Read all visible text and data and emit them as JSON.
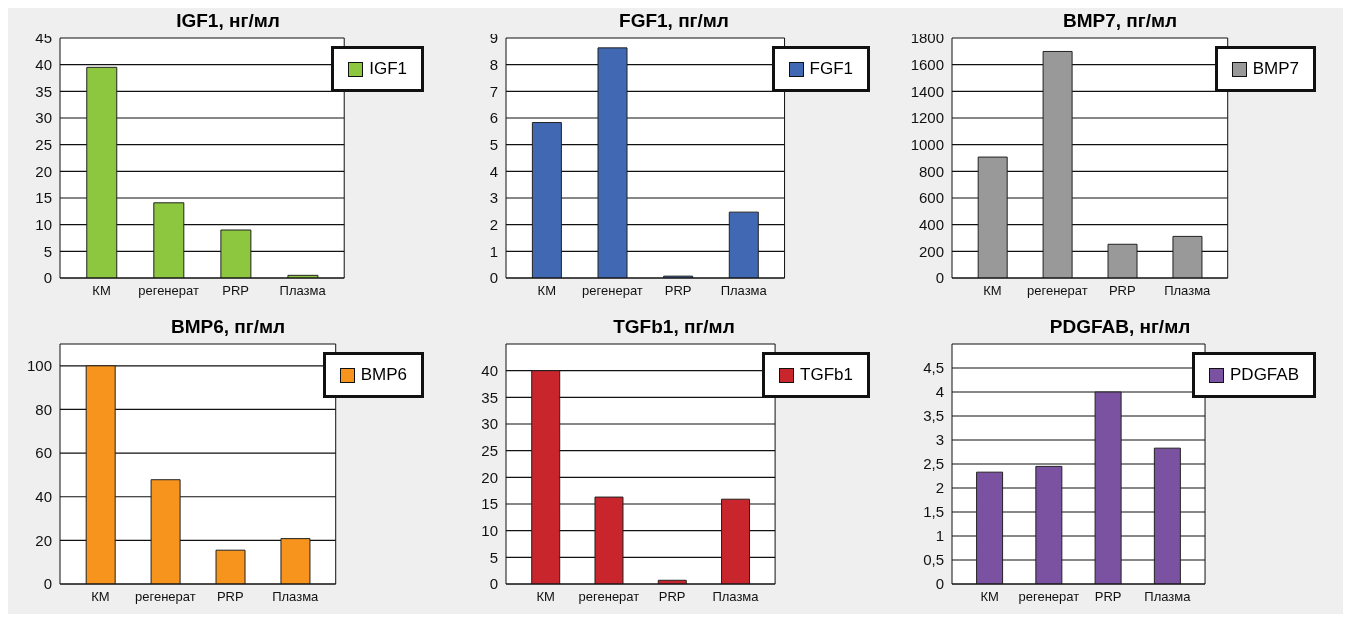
{
  "chart_data": [
    {
      "type": "bar",
      "title": "IGF1, нг/мл",
      "categories": [
        "КМ",
        "регенерат",
        "PRP",
        "Плазма"
      ],
      "series": [
        {
          "name": "IGF1",
          "color": "#8dc63f",
          "values": [
            39.5,
            14.1,
            9.0,
            0.5
          ]
        }
      ],
      "ylim": [
        0,
        45
      ],
      "yticks": [
        0,
        5,
        10,
        15,
        20,
        25,
        30,
        35,
        40,
        45
      ],
      "grid": "y",
      "legend": "top right"
    },
    {
      "type": "bar",
      "title": "FGF1, пг/мл",
      "categories": [
        "КМ",
        "регенерат",
        "PRP",
        "Плазма"
      ],
      "series": [
        {
          "name": "FGF1",
          "color": "#4169b3",
          "values": [
            5.83,
            8.63,
            0.07,
            2.47
          ]
        }
      ],
      "ylim": [
        0,
        9
      ],
      "yticks": [
        0,
        1,
        2,
        3,
        4,
        5,
        6,
        7,
        8,
        9
      ],
      "grid": "y",
      "legend": "top right"
    },
    {
      "type": "bar",
      "title": "BMP7, пг/мл",
      "categories": [
        "КМ",
        "регенерат",
        "PRP",
        "Плазма"
      ],
      "series": [
        {
          "name": "BMP7",
          "color": "#999999",
          "values": [
            907,
            1699,
            253,
            312
          ]
        }
      ],
      "ylim": [
        0,
        1800
      ],
      "yticks": [
        0,
        200,
        400,
        600,
        800,
        1000,
        1200,
        1400,
        1600,
        1800
      ],
      "grid": "y",
      "legend": "top right"
    },
    {
      "type": "bar",
      "title": "BMP6, пг/мл",
      "categories": [
        "КМ",
        "регенерат",
        "PRP",
        "Плазма"
      ],
      "series": [
        {
          "name": "BMP6",
          "color": "#f7941d",
          "values": [
            100,
            47.8,
            15.5,
            20.8
          ]
        }
      ],
      "ylim": [
        0,
        110
      ],
      "yticks": [
        0,
        20,
        40,
        60,
        80,
        100
      ],
      "grid": "y",
      "legend": "top right"
    },
    {
      "type": "bar",
      "title": "TGFb1, пг/мл",
      "categories": [
        "КМ",
        "регенерат",
        "PRP",
        "Плазма"
      ],
      "series": [
        {
          "name": "TGFb1",
          "color": "#c9252c",
          "values": [
            40,
            16.3,
            0.7,
            15.9
          ]
        }
      ],
      "ylim": [
        0,
        45
      ],
      "yticks": [
        0,
        5,
        10,
        15,
        20,
        25,
        30,
        35,
        40
      ],
      "grid": "y",
      "legend": "top right"
    },
    {
      "type": "bar",
      "title": "PDGFAB, нг/мл",
      "categories": [
        "КМ",
        "регенерат",
        "PRP",
        "Плазма"
      ],
      "series": [
        {
          "name": "PDGFAB",
          "color": "#7b52a1",
          "values": [
            2.33,
            2.45,
            4.0,
            2.83
          ]
        }
      ],
      "ylim": [
        0,
        5
      ],
      "yticks": [
        0,
        {
          "value": 0.5,
          "label": "0,5"
        },
        1,
        {
          "value": 1.5,
          "label": "1,5"
        },
        2,
        {
          "value": 2.5,
          "label": "2,5"
        },
        3,
        {
          "value": 3.5,
          "label": "3,5"
        },
        4,
        {
          "value": 4.5,
          "label": "4,5"
        }
      ],
      "grid": "y",
      "legend": "top right"
    }
  ]
}
